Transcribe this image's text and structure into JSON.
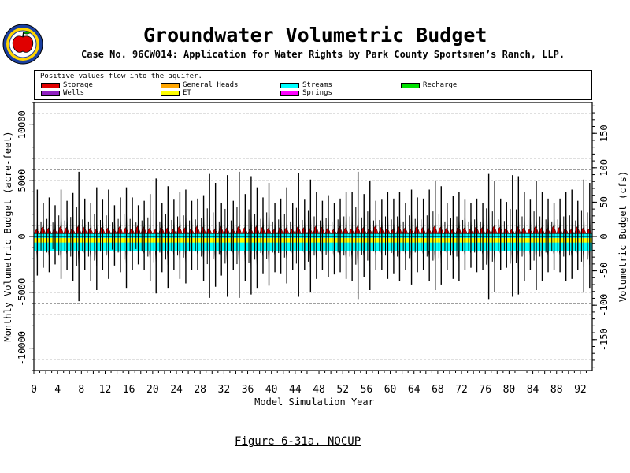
{
  "title": "Groundwater Volumetric Budget",
  "subtitle": "Case No. 96CW014: Application for Water Rights by Park County Sportsmen’s Ranch, LLP.",
  "footer": "Figure 6-31a.  NOCUP",
  "legend": {
    "note": "Positive values flow into the aquifer.",
    "items": [
      {
        "label": "Storage",
        "color": "#e00000"
      },
      {
        "label": "General Heads",
        "color": "#ffa500"
      },
      {
        "label": "Streams",
        "color": "#00ffff"
      },
      {
        "label": "Recharge",
        "color": "#00e000"
      },
      {
        "label": "Wells",
        "color": "#9020c0"
      },
      {
        "label": "ET",
        "color": "#ffff00"
      },
      {
        "label": "Springs",
        "color": "#ff00ff"
      }
    ]
  },
  "chart_data": {
    "type": "area",
    "xlabel": "Model Simulation Year",
    "ylabel_left": "Monthly Volumetric Budget (acre-feet)",
    "ylabel_right": "Volumetric Budget (cfs)",
    "xlim": [
      0,
      94
    ],
    "ylim": [
      -12000,
      12000
    ],
    "ylim_right": [
      -195,
      195
    ],
    "x_ticks": [
      0,
      2,
      4,
      6,
      8,
      10,
      12,
      14,
      16,
      18,
      20,
      22,
      24,
      26,
      28,
      30,
      32,
      34,
      36,
      38,
      40,
      42,
      44,
      46,
      48,
      50,
      52,
      54,
      56,
      58,
      60,
      62,
      64,
      66,
      68,
      70,
      72,
      74,
      76,
      78,
      80,
      82,
      84,
      86,
      88,
      90,
      92
    ],
    "x_tick_labels": [
      "0",
      "4",
      "8",
      "12",
      "16",
      "20",
      "24",
      "28",
      "32",
      "36",
      "40",
      "44",
      "48",
      "52",
      "56",
      "60",
      "64",
      "68",
      "72",
      "76",
      "80",
      "84",
      "88",
      "92"
    ],
    "y_ticks_left": [
      -10000,
      -5000,
      0,
      5000,
      10000
    ],
    "y_ticks_right": [
      -150,
      -100,
      -50,
      0,
      50,
      100,
      150
    ],
    "grid": "horizontal dashed",
    "legend_position": "top",
    "annual_peaks": [
      {
        "year": 0,
        "max": 4200,
        "min": -3500
      },
      {
        "year": 1,
        "max": 3000,
        "min": -2800
      },
      {
        "year": 2,
        "max": 3500,
        "min": -3200
      },
      {
        "year": 3,
        "max": 2800,
        "min": -2500
      },
      {
        "year": 4,
        "max": 4200,
        "min": -3800
      },
      {
        "year": 5,
        "max": 3200,
        "min": -3000
      },
      {
        "year": 6,
        "max": 3900,
        "min": -4000
      },
      {
        "year": 7,
        "max": 5800,
        "min": -5800
      },
      {
        "year": 8,
        "max": 3400,
        "min": -3000
      },
      {
        "year": 9,
        "max": 3000,
        "min": -4000
      },
      {
        "year": 10,
        "max": 4400,
        "min": -4800
      },
      {
        "year": 11,
        "max": 3300,
        "min": -3000
      },
      {
        "year": 12,
        "max": 4200,
        "min": -3800
      },
      {
        "year": 13,
        "max": 2800,
        "min": -2600
      },
      {
        "year": 14,
        "max": 3500,
        "min": -3200
      },
      {
        "year": 15,
        "max": 4400,
        "min": -4600
      },
      {
        "year": 16,
        "max": 3500,
        "min": -3000
      },
      {
        "year": 17,
        "max": 2800,
        "min": -2500
      },
      {
        "year": 18,
        "max": 3200,
        "min": -3000
      },
      {
        "year": 19,
        "max": 3800,
        "min": -4000
      },
      {
        "year": 20,
        "max": 5200,
        "min": -5100
      },
      {
        "year": 21,
        "max": 3000,
        "min": -3200
      },
      {
        "year": 22,
        "max": 4500,
        "min": -4600
      },
      {
        "year": 23,
        "max": 3300,
        "min": -3000
      },
      {
        "year": 24,
        "max": 4000,
        "min": -3800
      },
      {
        "year": 25,
        "max": 4200,
        "min": -4200
      },
      {
        "year": 26,
        "max": 3200,
        "min": -3000
      },
      {
        "year": 27,
        "max": 3400,
        "min": -3000
      },
      {
        "year": 28,
        "max": 3700,
        "min": -4000
      },
      {
        "year": 29,
        "max": 5600,
        "min": -5500
      },
      {
        "year": 30,
        "max": 4800,
        "min": -4500
      },
      {
        "year": 31,
        "max": 3000,
        "min": -3500
      },
      {
        "year": 32,
        "max": 5500,
        "min": -5400
      },
      {
        "year": 33,
        "max": 3200,
        "min": -3000
      },
      {
        "year": 34,
        "max": 5800,
        "min": -5500
      },
      {
        "year": 35,
        "max": 3800,
        "min": -4000
      },
      {
        "year": 36,
        "max": 5400,
        "min": -5200
      },
      {
        "year": 37,
        "max": 4400,
        "min": -4600
      },
      {
        "year": 38,
        "max": 3500,
        "min": -3300
      },
      {
        "year": 39,
        "max": 4800,
        "min": -4400
      },
      {
        "year": 40,
        "max": 3000,
        "min": -3200
      },
      {
        "year": 41,
        "max": 3400,
        "min": -3300
      },
      {
        "year": 42,
        "max": 4400,
        "min": -4200
      },
      {
        "year": 43,
        "max": 3000,
        "min": -3000
      },
      {
        "year": 44,
        "max": 5700,
        "min": -5400
      },
      {
        "year": 45,
        "max": 3300,
        "min": -3000
      },
      {
        "year": 46,
        "max": 5100,
        "min": -5000
      },
      {
        "year": 47,
        "max": 4000,
        "min": -3800
      },
      {
        "year": 48,
        "max": 3200,
        "min": -3000
      },
      {
        "year": 49,
        "max": 3700,
        "min": -3600
      },
      {
        "year": 50,
        "max": 3000,
        "min": -3400
      },
      {
        "year": 51,
        "max": 3400,
        "min": -3200
      },
      {
        "year": 52,
        "max": 4000,
        "min": -3800
      },
      {
        "year": 53,
        "max": 4000,
        "min": -4000
      },
      {
        "year": 54,
        "max": 5800,
        "min": -5600
      },
      {
        "year": 55,
        "max": 3800,
        "min": -3600
      },
      {
        "year": 56,
        "max": 5000,
        "min": -4800
      },
      {
        "year": 57,
        "max": 3200,
        "min": -3000
      },
      {
        "year": 58,
        "max": 3300,
        "min": -3000
      },
      {
        "year": 59,
        "max": 4000,
        "min": -3800
      },
      {
        "year": 60,
        "max": 3400,
        "min": -3300
      },
      {
        "year": 61,
        "max": 4000,
        "min": -4000
      },
      {
        "year": 62,
        "max": 3000,
        "min": -3000
      },
      {
        "year": 63,
        "max": 4200,
        "min": -4300
      },
      {
        "year": 64,
        "max": 3500,
        "min": -3200
      },
      {
        "year": 65,
        "max": 3400,
        "min": -3000
      },
      {
        "year": 66,
        "max": 4200,
        "min": -4000
      },
      {
        "year": 67,
        "max": 5000,
        "min": -4800
      },
      {
        "year": 68,
        "max": 4500,
        "min": -4300
      },
      {
        "year": 69,
        "max": 3000,
        "min": -3000
      },
      {
        "year": 70,
        "max": 3600,
        "min": -3800
      },
      {
        "year": 71,
        "max": 4000,
        "min": -4000
      },
      {
        "year": 72,
        "max": 3300,
        "min": -3000
      },
      {
        "year": 73,
        "max": 3000,
        "min": -2800
      },
      {
        "year": 74,
        "max": 3400,
        "min": -3200
      },
      {
        "year": 75,
        "max": 3000,
        "min": -3000
      },
      {
        "year": 76,
        "max": 5600,
        "min": -5600
      },
      {
        "year": 77,
        "max": 5000,
        "min": -5000
      },
      {
        "year": 78,
        "max": 3400,
        "min": -3000
      },
      {
        "year": 79,
        "max": 3100,
        "min": -2800
      },
      {
        "year": 80,
        "max": 5500,
        "min": -5400
      },
      {
        "year": 81,
        "max": 5400,
        "min": -5200
      },
      {
        "year": 82,
        "max": 4000,
        "min": -4000
      },
      {
        "year": 83,
        "max": 3300,
        "min": -3000
      },
      {
        "year": 84,
        "max": 5000,
        "min": -4800
      },
      {
        "year": 85,
        "max": 4000,
        "min": -4000
      },
      {
        "year": 86,
        "max": 3400,
        "min": -3200
      },
      {
        "year": 87,
        "max": 3000,
        "min": -3000
      },
      {
        "year": 88,
        "max": 3400,
        "min": -3200
      },
      {
        "year": 89,
        "max": 4000,
        "min": -4000
      },
      {
        "year": 90,
        "max": 4200,
        "min": -3800
      },
      {
        "year": 91,
        "max": 3200,
        "min": -3000
      },
      {
        "year": 92,
        "max": 5100,
        "min": -5000
      },
      {
        "year": 93,
        "max": 4800,
        "min": -4600
      }
    ],
    "components_typical": {
      "Storage": {
        "positive": 700,
        "negative": -700
      },
      "Streams": {
        "positive": 250,
        "negative": -1300
      },
      "ET": {
        "positive": 0,
        "negative": -400
      },
      "Recharge_peak": 2800
    }
  }
}
